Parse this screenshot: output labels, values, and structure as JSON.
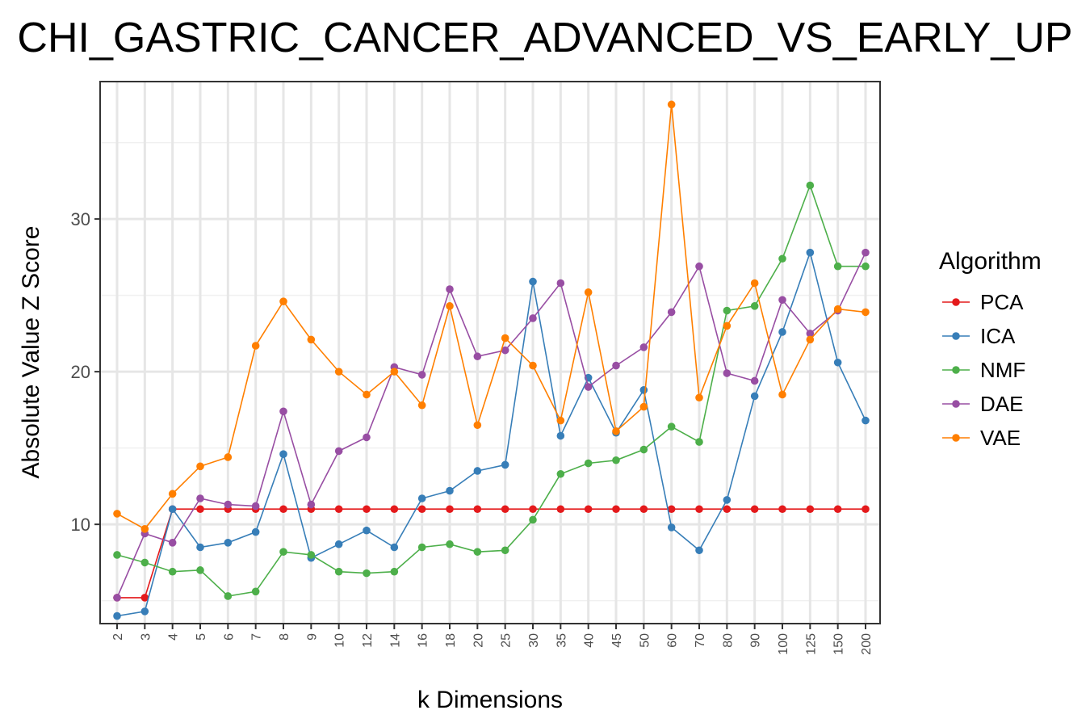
{
  "chart_data": {
    "type": "line",
    "title": "CHI_GASTRIC_CANCER_ADVANCED_VS_EARLY_UP",
    "xlabel": "k Dimensions",
    "ylabel": "Absolute Value Z Score",
    "categories": [
      "2",
      "3",
      "4",
      "5",
      "6",
      "7",
      "8",
      "9",
      "10",
      "12",
      "14",
      "16",
      "18",
      "20",
      "25",
      "30",
      "35",
      "40",
      "45",
      "50",
      "60",
      "70",
      "80",
      "90",
      "100",
      "125",
      "150",
      "200"
    ],
    "y_ticks": [
      10,
      20,
      30
    ],
    "ylim": [
      3.5,
      39
    ],
    "grid": true,
    "legend_title": "Algorithm",
    "legend_position": "right",
    "series": [
      {
        "name": "PCA",
        "color": "#E41A1C",
        "values": [
          5.2,
          5.2,
          11.0,
          11.0,
          11.0,
          11.0,
          11.0,
          11.0,
          11.0,
          11.0,
          11.0,
          11.0,
          11.0,
          11.0,
          11.0,
          11.0,
          11.0,
          11.0,
          11.0,
          11.0,
          11.0,
          11.0,
          11.0,
          11.0,
          11.0,
          11.0,
          11.0,
          11.0
        ]
      },
      {
        "name": "ICA",
        "color": "#377EB8",
        "values": [
          4.0,
          4.3,
          11.0,
          8.5,
          8.8,
          9.5,
          14.6,
          7.8,
          8.7,
          9.6,
          8.5,
          11.7,
          12.2,
          13.5,
          13.9,
          25.9,
          15.8,
          19.6,
          16.0,
          18.8,
          9.8,
          8.3,
          11.6,
          18.4,
          22.6,
          27.8,
          20.6,
          16.8
        ]
      },
      {
        "name": "NMF",
        "color": "#4DAF4A",
        "values": [
          8.0,
          7.5,
          6.9,
          7.0,
          5.3,
          5.6,
          8.2,
          8.0,
          6.9,
          6.8,
          6.9,
          8.5,
          8.7,
          8.2,
          8.3,
          10.3,
          13.3,
          14.0,
          14.2,
          14.9,
          16.4,
          15.4,
          24.0,
          24.3,
          27.4,
          32.2,
          26.9,
          26.9
        ]
      },
      {
        "name": "DAE",
        "color": "#984EA3",
        "values": [
          5.2,
          9.4,
          8.8,
          11.7,
          11.3,
          11.2,
          17.4,
          11.3,
          14.8,
          15.7,
          20.3,
          19.8,
          25.4,
          21.0,
          21.4,
          23.5,
          25.8,
          19.0,
          20.4,
          21.6,
          23.9,
          26.9,
          19.9,
          19.4,
          24.7,
          22.5,
          24.0,
          27.8
        ]
      },
      {
        "name": "VAE",
        "color": "#FF7F00",
        "values": [
          10.7,
          9.7,
          12.0,
          13.8,
          14.4,
          21.7,
          24.6,
          22.1,
          20.0,
          18.5,
          20.0,
          17.8,
          24.3,
          16.5,
          22.2,
          20.4,
          16.8,
          25.2,
          16.1,
          17.7,
          37.5,
          18.3,
          23.0,
          25.8,
          18.5,
          22.1,
          24.1,
          23.9
        ]
      }
    ]
  }
}
